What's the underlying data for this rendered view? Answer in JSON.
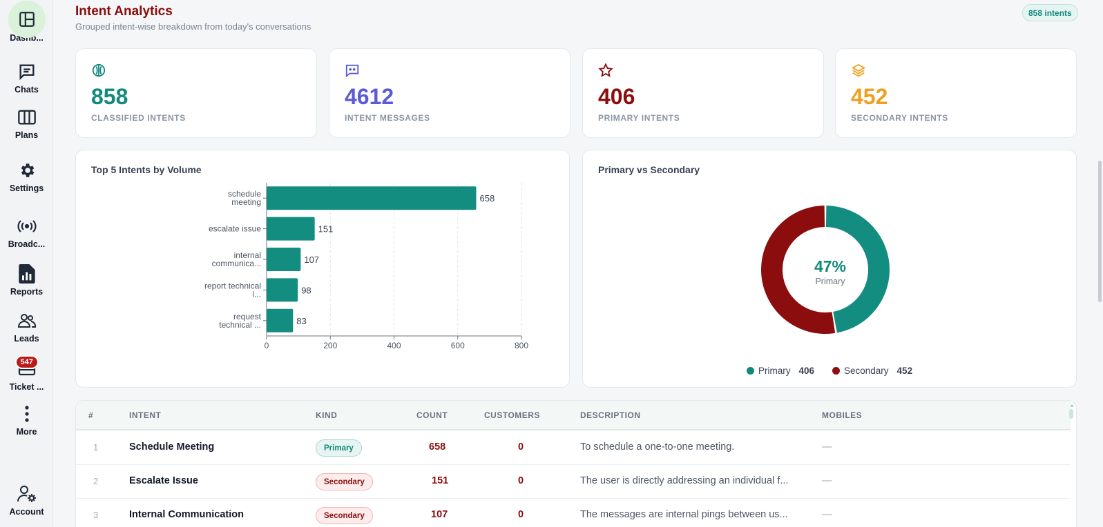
{
  "sidebar": {
    "items": [
      {
        "label": "Dashb...",
        "icon": "dashboard-icon"
      },
      {
        "label": "Chats",
        "icon": "chat-icon"
      },
      {
        "label": "Plans",
        "icon": "columns-icon"
      },
      {
        "label": "Settings",
        "icon": "gear-icon"
      },
      {
        "label": "Broadc...",
        "icon": "broadcast-icon"
      },
      {
        "label": "Reports",
        "icon": "report-icon"
      },
      {
        "label": "Leads",
        "icon": "users-icon"
      },
      {
        "label": "Ticket ...",
        "icon": "ticket-icon",
        "badge": "547"
      },
      {
        "label": "More",
        "icon": "more-vertical-icon"
      },
      {
        "label": "Account",
        "icon": "user-gear-icon"
      }
    ]
  },
  "header": {
    "title": "Intent Analytics",
    "subtitle": "Grouped intent-wise breakdown from today's conversations",
    "count_pill": "858 intents"
  },
  "stats": [
    {
      "value": "858",
      "label": "CLASSIFIED INTENTS",
      "icon": "brain-icon",
      "color": "#11897d"
    },
    {
      "value": "4612",
      "label": "INTENT MESSAGES",
      "icon": "message-dots-icon",
      "color": "#5b5bd6"
    },
    {
      "value": "406",
      "label": "PRIMARY INTENTS",
      "icon": "star-icon",
      "color": "#8b0d0d"
    },
    {
      "value": "452",
      "label": "SECONDARY INTENTS",
      "icon": "layers-icon",
      "color": "#f0a020"
    }
  ],
  "bar_card": {
    "title": "Top 5 Intents by Volume"
  },
  "donut_card": {
    "title": "Primary vs Secondary",
    "center_value": "47%",
    "center_label": "Primary",
    "legend": [
      {
        "label": "Primary",
        "value": "406",
        "color": "#11897d"
      },
      {
        "label": "Secondary",
        "value": "452",
        "color": "#8b0d0d"
      }
    ]
  },
  "chart_data": [
    {
      "type": "bar",
      "orientation": "horizontal",
      "title": "Top 5 Intents by Volume",
      "categories": [
        [
          "schedule",
          "meeting"
        ],
        [
          "escalate issue"
        ],
        [
          "internal",
          "communica..."
        ],
        [
          "report technical",
          "i..."
        ],
        [
          "request",
          "technical ..."
        ]
      ],
      "values": [
        658,
        151,
        107,
        98,
        83
      ],
      "xlim": [
        0,
        800
      ],
      "ticks": [
        "0",
        "200",
        "400",
        "600",
        "800"
      ],
      "grid": true,
      "color": "#138d80"
    },
    {
      "type": "pie",
      "title": "Primary vs Secondary",
      "labels": [
        "Primary",
        "Secondary"
      ],
      "values": [
        406,
        452
      ],
      "colors": [
        "#138d80",
        "#8b0d0d"
      ],
      "donut": true
    }
  ],
  "table": {
    "headers": [
      "#",
      "INTENT",
      "KIND",
      "COUNT",
      "CUSTOMERS",
      "DESCRIPTION",
      "MOBILES"
    ],
    "rows": [
      {
        "num": "1",
        "intent": "Schedule Meeting",
        "kind": "Primary",
        "count": "658",
        "customers": "0",
        "description": "To schedule a one-to-one meeting.",
        "mobiles": "—"
      },
      {
        "num": "2",
        "intent": "Escalate Issue",
        "kind": "Secondary",
        "count": "151",
        "customers": "0",
        "description": "The user is directly addressing an individual f...",
        "mobiles": "—"
      },
      {
        "num": "3",
        "intent": "Internal Communication",
        "kind": "Secondary",
        "count": "107",
        "customers": "0",
        "description": "The messages are internal pings between us...",
        "mobiles": "—"
      }
    ]
  }
}
